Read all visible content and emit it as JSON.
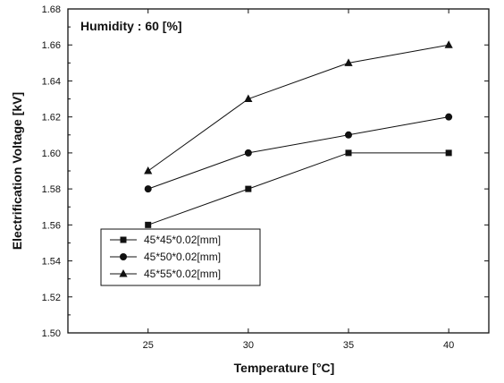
{
  "chart_data": {
    "type": "line",
    "annotation": "Humidity : 60 [%]",
    "xlabel": "Temperature [°C]",
    "ylabel": "Electrification Voltage [kV]",
    "x": [
      25,
      30,
      35,
      40
    ],
    "xlim": [
      21,
      42
    ],
    "ylim": [
      1.5,
      1.68
    ],
    "xticks": [
      "25",
      "30",
      "35",
      "40"
    ],
    "yticks": [
      "1.50",
      "1.52",
      "1.54",
      "1.56",
      "1.58",
      "1.60",
      "1.62",
      "1.64",
      "1.66",
      "1.68"
    ],
    "grid": false,
    "legend_position": "bottom-left",
    "series": [
      {
        "name": "45*45*0.02[mm]",
        "marker": "square",
        "values": [
          1.56,
          1.58,
          1.6,
          1.6
        ]
      },
      {
        "name": "45*50*0.02[mm]",
        "marker": "circle",
        "values": [
          1.58,
          1.6,
          1.61,
          1.62
        ]
      },
      {
        "name": "45*55*0.02[mm]",
        "marker": "triangle",
        "values": [
          1.59,
          1.63,
          1.65,
          1.66
        ]
      }
    ]
  }
}
